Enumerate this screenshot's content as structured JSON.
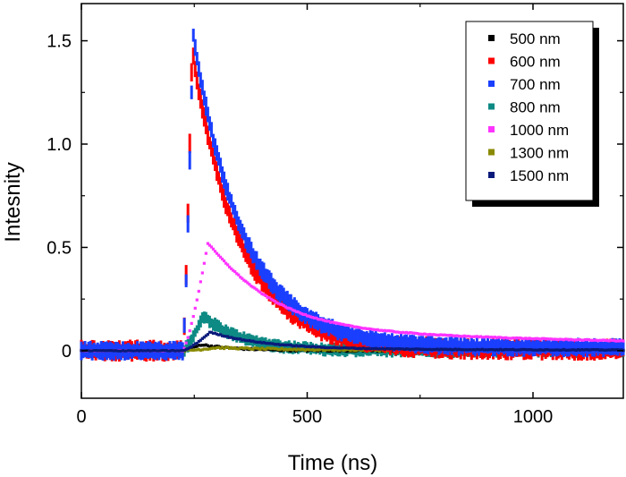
{
  "chart_data": {
    "type": "scatter",
    "title": "",
    "xlabel": "Time (ns)",
    "ylabel": "Intesnity",
    "xlim": [
      0,
      1200
    ],
    "ylim": [
      -0.23,
      1.68
    ],
    "xticks": [
      0,
      500,
      1000
    ],
    "xtick_labels": [
      "0",
      "500",
      "1000"
    ],
    "yticks": [
      0,
      0.5,
      1.0,
      1.5
    ],
    "ytick_labels": [
      "0",
      "0.5",
      "1.0",
      "1.5"
    ],
    "grid": false,
    "legend_position": "top-right",
    "onset_time_ns": 225,
    "series": [
      {
        "name": "500 nm",
        "color": "#000000",
        "peak_time": 265,
        "peak": 0.03,
        "rise": 20,
        "decay": 80,
        "baseline": 0.0,
        "noise": 0.004,
        "symbol": "square"
      },
      {
        "name": "600 nm",
        "color": "#ff0000",
        "peak_time": 245,
        "peak": 1.45,
        "rise": 10,
        "decay": 105,
        "baseline": 0.005,
        "noise": 0.045,
        "symbol": "square"
      },
      {
        "name": "700 nm",
        "color": "#1a3fff",
        "peak_time": 247,
        "peak": 1.52,
        "rise": 10,
        "decay": 110,
        "baseline": 0.015,
        "noise": 0.04,
        "symbol": "square"
      },
      {
        "name": "800 nm",
        "color": "#0e8a84",
        "peak_time": 270,
        "peak": 0.17,
        "rise": 20,
        "decay": 85,
        "baseline": 0.0,
        "noise": 0.03,
        "symbol": "square"
      },
      {
        "name": "1000 nm",
        "color": "#ff33ff",
        "peak_time": 280,
        "peak": 0.52,
        "rise": 25,
        "decay": 120,
        "baseline": 0.0,
        "noise": 0.002,
        "tail": 0.11,
        "tail_decay": 1100,
        "symbol": "square"
      },
      {
        "name": "1300 nm",
        "color": "#8a8a00",
        "peak_time": 300,
        "peak": 0.015,
        "rise": 30,
        "decay": 200,
        "baseline": 0.0,
        "noise": 0.004,
        "symbol": "square"
      },
      {
        "name": "1500 nm",
        "color": "#0a1a7a",
        "peak_time": 285,
        "peak": 0.09,
        "rise": 25,
        "decay": 110,
        "baseline": 0.0,
        "noise": 0.002,
        "tail": 0.01,
        "tail_decay": 900,
        "symbol": "square"
      }
    ]
  }
}
